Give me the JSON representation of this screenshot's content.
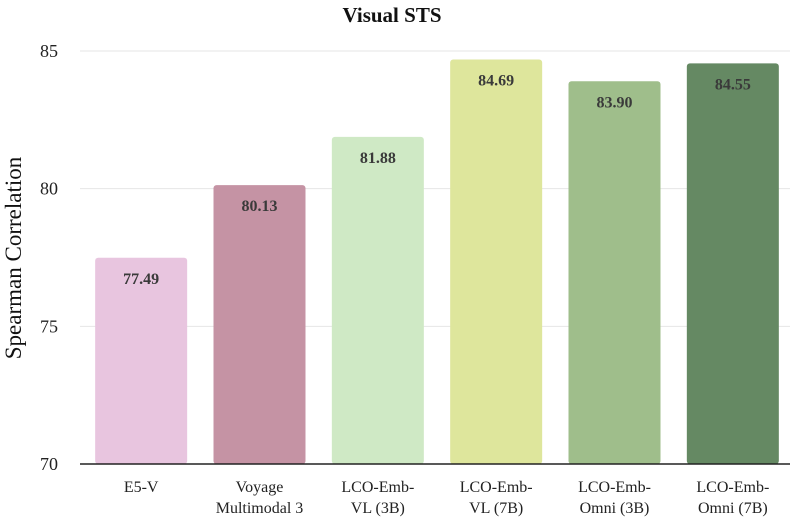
{
  "chart_data": {
    "type": "bar",
    "title": "Visual STS",
    "xlabel": "",
    "ylabel": "Spearman Correlation",
    "ylim": [
      70,
      85
    ],
    "yticks": [
      70,
      75,
      80,
      85
    ],
    "grid": true,
    "categories": [
      [
        "E5-V"
      ],
      [
        "Voyage",
        "Multimodal 3"
      ],
      [
        "LCO-Emb-",
        "VL (3B)"
      ],
      [
        "LCO-Emb-",
        "VL (7B)"
      ],
      [
        "LCO-Emb-",
        "Omni (3B)"
      ],
      [
        "LCO-Emb-",
        "Omni (7B)"
      ]
    ],
    "values": [
      77.49,
      80.13,
      81.88,
      84.69,
      83.9,
      84.55
    ],
    "value_labels": [
      "77.49",
      "80.13",
      "81.88",
      "84.69",
      "83.90",
      "84.55"
    ],
    "colors": [
      "#e8c5df",
      "#c593a4",
      "#cfe9c5",
      "#dee69c",
      "#9fbe8b",
      "#658963"
    ]
  }
}
